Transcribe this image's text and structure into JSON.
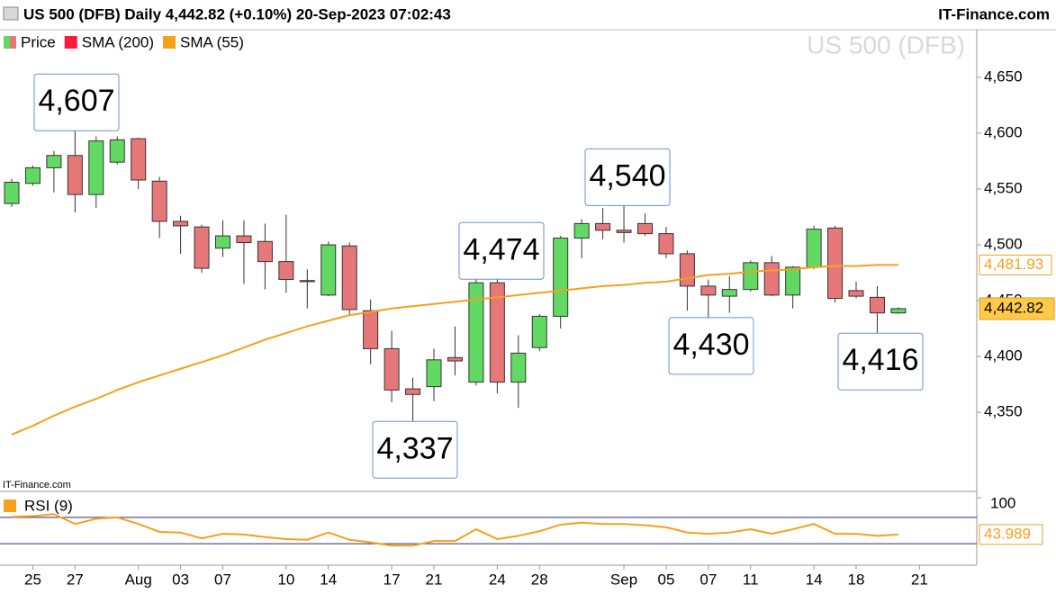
{
  "header": {
    "title": "US 500 (DFB) Daily 4,442.82 (+0.10%) 20-Sep-2023 07:02:43",
    "brand": "IT-Finance.com"
  },
  "chart_data": [
    {
      "type": "candlestick",
      "watermark": "US 500 (DFB)",
      "source": "IT-Finance.com",
      "categories": [
        null,
        "25",
        null,
        "27",
        null,
        null,
        "Aug",
        null,
        "03",
        null,
        "07",
        null,
        null,
        "10",
        null,
        "14",
        null,
        null,
        "17",
        null,
        "21",
        null,
        null,
        "24",
        null,
        "28",
        null,
        null,
        null,
        "Sep",
        null,
        "05",
        null,
        "07",
        null,
        "11",
        null,
        null,
        "14",
        null,
        "18",
        null,
        null,
        "21"
      ],
      "series": [
        {
          "name": "Price",
          "up_color": "#62d962",
          "down_color": "#e6787a",
          "last_value_label": "4,442.82",
          "open": [
            4537,
            4555,
            4569,
            4580,
            4545,
            4574,
            4595,
            4557,
            4521,
            4516,
            4497,
            4508,
            4503,
            4485,
            4468,
            4455,
            4499,
            4441,
            4407,
            4371,
            4373,
            4399,
            4377,
            4466,
            4377,
            4408,
            4436,
            4506,
            4519,
            4513,
            4519,
            4510,
            4492,
            4463,
            4454,
            4460,
            4484,
            4455,
            4480,
            4515,
            4459,
            4453,
            4439,
            null
          ],
          "high": [
            4559,
            4571,
            4584,
            4607,
            4597,
            4597,
            4596,
            4561,
            4526,
            4518,
            4522,
            4522,
            4519,
            4527,
            4478,
            4503,
            4502,
            4451,
            4423,
            4381,
            4407,
            4427,
            4469,
            4474,
            4419,
            4438,
            4508,
            4523,
            4533,
            4540,
            4528,
            4516,
            4495,
            4469,
            4472,
            4486,
            4490,
            4481,
            4517,
            4517,
            4467,
            4463,
            4444,
            null
          ],
          "low": [
            4534,
            4553,
            4547,
            4529,
            4533,
            4572,
            4550,
            4506,
            4492,
            4475,
            4489,
            4465,
            4460,
            4457,
            4443,
            4454,
            4437,
            4393,
            4359,
            4337,
            4360,
            4383,
            4374,
            4367,
            4354,
            4405,
            4425,
            4488,
            4505,
            4502,
            4508,
            4488,
            4441,
            4430,
            4439,
            4458,
            4454,
            4443,
            4478,
            4448,
            4452,
            4416,
            4438,
            null
          ],
          "close": [
            4556,
            4569,
            4580,
            4545,
            4593,
            4594,
            4558,
            4521,
            4517,
            4479,
            4508,
            4502,
            4485,
            4469,
            4467,
            4500,
            4442,
            4407,
            4370,
            4366,
            4397,
            4396,
            4466,
            4377,
            4403,
            4436,
            4506,
            4519,
            4513,
            4511,
            4510,
            4492,
            4463,
            4455,
            4460,
            4484,
            4455,
            4480,
            4514,
            4452,
            4454,
            4439,
            4442.82,
            null
          ]
        },
        {
          "name": "SMA (200)",
          "color": "#ff1a3c"
        },
        {
          "name": "SMA (55)",
          "color": "#f5a11c",
          "last_value_label": "4,481.93",
          "values": [
            4330,
            4338,
            4347,
            4355,
            4362,
            4370,
            4377,
            4383,
            4389,
            4395,
            4401,
            4408,
            4415,
            4421,
            4427,
            4432,
            4437,
            4440,
            4443,
            4445,
            4447,
            4449,
            4451,
            4453,
            4455,
            4457,
            4459,
            4461,
            4463,
            4464,
            4466,
            4467,
            4470,
            4473,
            4474,
            4476,
            4477,
            4478,
            4480,
            4481,
            4481,
            4482,
            4481.93,
            null
          ]
        }
      ],
      "ylim": [
        4280,
        4691
      ],
      "yticks": [
        {
          "value": 4350,
          "label": "4,350"
        },
        {
          "value": 4400,
          "label": "4,400"
        },
        {
          "value": 4450,
          "label": "4,450"
        },
        {
          "value": 4500,
          "label": "4,500"
        },
        {
          "value": 4550,
          "label": "4,550"
        },
        {
          "value": 4600,
          "label": "4,600"
        },
        {
          "value": 4650,
          "label": "4,650"
        }
      ],
      "annotations": [
        {
          "value": 4607,
          "label": "4,607"
        },
        {
          "value": 4474,
          "label": "4,474"
        },
        {
          "value": 4540,
          "label": "4,540"
        },
        {
          "value": 4337,
          "label": "4,337"
        },
        {
          "value": 4430,
          "label": "4,430"
        },
        {
          "value": 4416,
          "label": "4,416"
        }
      ]
    },
    {
      "type": "line",
      "series": [
        {
          "name": "RSI (9)",
          "color": "#f5a11c",
          "last_value_label": "43.989",
          "values": [
            71,
            72,
            75,
            60,
            68,
            70,
            60,
            48,
            47,
            38,
            45,
            44,
            40,
            37,
            36,
            47,
            36,
            32,
            27,
            27,
            34,
            34,
            52,
            37,
            42,
            49,
            59,
            62,
            60,
            60,
            58,
            55,
            47,
            45,
            47,
            52,
            45,
            52,
            60,
            45,
            45,
            42,
            43.989,
            null
          ]
        }
      ],
      "ylim": [
        0,
        100
      ],
      "yticks": [
        100
      ],
      "reference_lines": [
        70,
        30
      ],
      "reference_color": "#2b2b73"
    }
  ]
}
